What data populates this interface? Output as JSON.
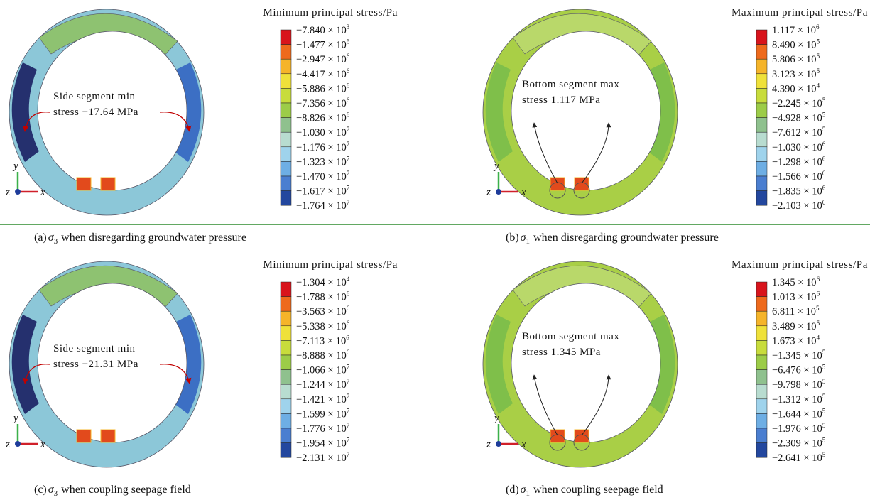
{
  "panels": [
    {
      "legend_title": "Minimum principal stress/Pa",
      "legend_labels": [
        {
          "text": "−7.840 × 10",
          "exp": "3"
        },
        {
          "text": "−1.477 × 10",
          "exp": "6"
        },
        {
          "text": "−2.947 × 10",
          "exp": "6"
        },
        {
          "text": "−4.417 × 10",
          "exp": "6"
        },
        {
          "text": "−5.886 × 10",
          "exp": "6"
        },
        {
          "text": "−7.356 × 10",
          "exp": "6"
        },
        {
          "text": "−8.826 × 10",
          "exp": "6"
        },
        {
          "text": "−1.030 × 10",
          "exp": "7"
        },
        {
          "text": "−1.176 × 10",
          "exp": "7"
        },
        {
          "text": "−1.323 × 10",
          "exp": "7"
        },
        {
          "text": "−1.470 × 10",
          "exp": "7"
        },
        {
          "text": "−1.617 × 10",
          "exp": "7"
        },
        {
          "text": "−1.764 × 10",
          "exp": "7"
        }
      ],
      "annotation": [
        "Side segment min",
        "stress −17.64 MPa"
      ],
      "axes": {
        "y": "y",
        "z": "z",
        "x": "x"
      },
      "caption": {
        "label": "(a)",
        "symbol": "σ",
        "sub": "3",
        "text": "when disregarding groundwater pressure"
      }
    },
    {
      "legend_title": "Maximum principal stress/Pa",
      "legend_labels": [
        {
          "text": "1.117 × 10",
          "exp": "6"
        },
        {
          "text": "8.490 × 10",
          "exp": "5"
        },
        {
          "text": "5.806 × 10",
          "exp": "5"
        },
        {
          "text": "3.123 × 10",
          "exp": "5"
        },
        {
          "text": "4.390 × 10",
          "exp": "4"
        },
        {
          "text": "−2.245 × 10",
          "exp": "5"
        },
        {
          "text": "−4.928 × 10",
          "exp": "5"
        },
        {
          "text": "−7.612 × 10",
          "exp": "5"
        },
        {
          "text": "−1.030 × 10",
          "exp": "6"
        },
        {
          "text": "−1.298 × 10",
          "exp": "6"
        },
        {
          "text": "−1.566 × 10",
          "exp": "6"
        },
        {
          "text": "−1.835 × 10",
          "exp": "6"
        },
        {
          "text": "−2.103 × 10",
          "exp": "6"
        }
      ],
      "annotation": [
        "Bottom segment max",
        "stress 1.117 MPa"
      ],
      "axes": {
        "y": "y",
        "z": "z",
        "x": "x"
      },
      "caption": {
        "label": "(b)",
        "symbol": "σ",
        "sub": "1",
        "text": "when disregarding groundwater pressure"
      }
    },
    {
      "legend_title": "Minimum principal stress/Pa",
      "legend_labels": [
        {
          "text": "−1.304 × 10",
          "exp": "4"
        },
        {
          "text": "−1.788 × 10",
          "exp": "6"
        },
        {
          "text": "−3.563 × 10",
          "exp": "6"
        },
        {
          "text": "−5.338 × 10",
          "exp": "6"
        },
        {
          "text": "−7.113 × 10",
          "exp": "6"
        },
        {
          "text": "−8.888 × 10",
          "exp": "6"
        },
        {
          "text": "−1.066 × 10",
          "exp": "7"
        },
        {
          "text": "−1.244 × 10",
          "exp": "7"
        },
        {
          "text": "−1.421 × 10",
          "exp": "7"
        },
        {
          "text": "−1.599 × 10",
          "exp": "7"
        },
        {
          "text": "−1.776 × 10",
          "exp": "7"
        },
        {
          "text": "−1.954 × 10",
          "exp": "7"
        },
        {
          "text": "−2.131 × 10",
          "exp": "7"
        }
      ],
      "annotation": [
        "Side segment min",
        "stress −21.31 MPa"
      ],
      "axes": {
        "y": "y",
        "z": "z",
        "x": "x"
      },
      "caption": {
        "label": "(c)",
        "symbol": "σ",
        "sub": "3",
        "text": "when coupling seepage field"
      }
    },
    {
      "legend_title": "Maximum principal stress/Pa",
      "legend_labels": [
        {
          "text": "1.345 × 10",
          "exp": "6"
        },
        {
          "text": "1.013 × 10",
          "exp": "6"
        },
        {
          "text": "6.811 × 10",
          "exp": "5"
        },
        {
          "text": "3.489 × 10",
          "exp": "5"
        },
        {
          "text": "1.673 × 10",
          "exp": "4"
        },
        {
          "text": "−1.345 × 10",
          "exp": "5"
        },
        {
          "text": "−6.476 × 10",
          "exp": "5"
        },
        {
          "text": "−9.798 × 10",
          "exp": "5"
        },
        {
          "text": "−1.312 × 10",
          "exp": "5"
        },
        {
          "text": "−1.644 × 10",
          "exp": "5"
        },
        {
          "text": "−1.976 × 10",
          "exp": "5"
        },
        {
          "text": "−2.309 × 10",
          "exp": "5"
        },
        {
          "text": "−2.641 × 10",
          "exp": "5"
        }
      ],
      "annotation": [
        "Bottom segment max",
        "stress 1.345 MPa"
      ],
      "axes": {
        "y": "y",
        "z": "z",
        "x": "x"
      },
      "caption": {
        "label": "(d)",
        "symbol": "σ",
        "sub": "1",
        "text": "when coupling seepage field"
      }
    }
  ]
}
